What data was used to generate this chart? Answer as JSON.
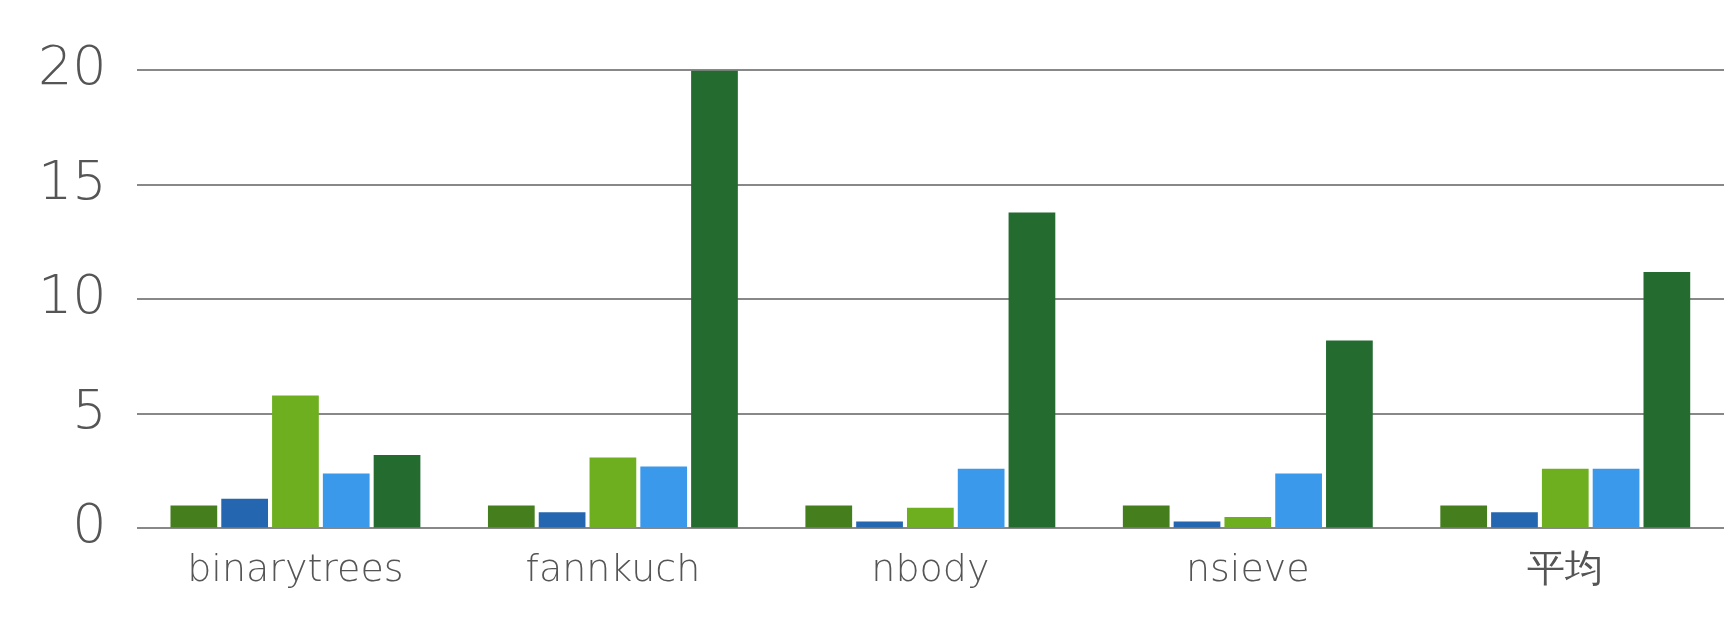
{
  "chart_data": {
    "type": "bar",
    "categories": [
      "binarytrees",
      "fannkuch",
      "nbody",
      "nsieve",
      "平均"
    ],
    "series": [
      {
        "color": "#457e1c",
        "values": [
          1.0,
          1.0,
          1.0,
          1.0,
          1.0
        ]
      },
      {
        "color": "#2466b0",
        "values": [
          1.3,
          0.7,
          0.3,
          0.3,
          0.7
        ]
      },
      {
        "color": "#6daf1f",
        "values": [
          5.8,
          3.1,
          0.9,
          0.5,
          2.6
        ]
      },
      {
        "color": "#3a99ea",
        "values": [
          2.4,
          2.7,
          2.6,
          2.4,
          2.6
        ]
      },
      {
        "color": "#246b30",
        "values": [
          3.2,
          20,
          13.8,
          8.2,
          11.2
        ]
      }
    ],
    "ylim": [
      0,
      20
    ],
    "yticks": [
      0,
      5,
      10,
      15,
      20
    ],
    "grid": "y",
    "legend": false
  }
}
